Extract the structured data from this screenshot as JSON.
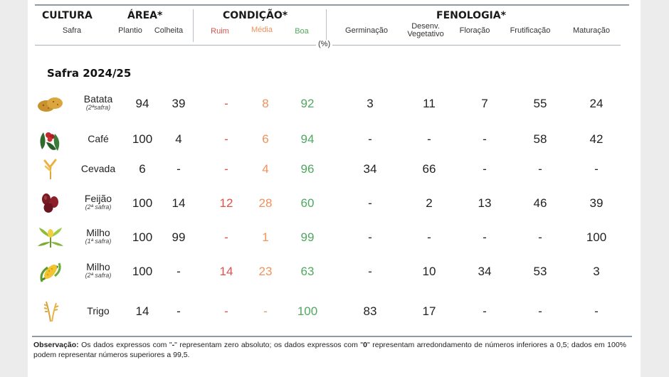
{
  "header": {
    "cultura": "CULTURA",
    "area": "ÁREA*",
    "condicao": "CONDIÇÃO*",
    "fenologia": "FENOLOGIA*",
    "safra": "Safra",
    "plantio": "Plantio",
    "colheita": "Colheita",
    "ruim": "Ruim",
    "media": "Média",
    "boa": "Boa",
    "germinacao": "Germinação",
    "desenv_l1": "Desenv.",
    "desenv_l2": "Vegetativo",
    "floracao": "Floração",
    "frutificacao": "Frutificação",
    "maturacao": "Maturação",
    "unit": "(%)"
  },
  "section_title": "Safra 2024/25",
  "rows": [
    {
      "name": "Batata",
      "note": "(2ªsafra)",
      "icon": "potato-icon",
      "plantio": "94",
      "colheita": "39",
      "ruim": "-",
      "media": "8",
      "boa": "92",
      "germinacao": "3",
      "desenv": "11",
      "floracao": "7",
      "frutificacao": "55",
      "maturacao": "24"
    },
    {
      "name": "Café",
      "note": "",
      "icon": "coffee-icon",
      "plantio": "100",
      "colheita": "4",
      "ruim": "-",
      "media": "6",
      "boa": "94",
      "germinacao": "-",
      "desenv": "-",
      "floracao": "-",
      "frutificacao": "58",
      "maturacao": "42"
    },
    {
      "name": "Cevada",
      "note": "",
      "icon": "barley-icon",
      "plantio": "6",
      "colheita": "-",
      "ruim": "-",
      "media": "4",
      "boa": "96",
      "germinacao": "34",
      "desenv": "66",
      "floracao": "-",
      "frutificacao": "-",
      "maturacao": "-"
    },
    {
      "name": "Feijão",
      "note": "(2ª safra)",
      "icon": "bean-icon",
      "plantio": "100",
      "colheita": "14",
      "ruim": "12",
      "media": "28",
      "boa": "60",
      "germinacao": "-",
      "desenv": "2",
      "floracao": "13",
      "frutificacao": "46",
      "maturacao": "39"
    },
    {
      "name": "Milho",
      "note": "(1ª safra)",
      "icon": "corn-plant-icon",
      "plantio": "100",
      "colheita": "99",
      "ruim": "-",
      "media": "1",
      "boa": "99",
      "germinacao": "-",
      "desenv": "-",
      "floracao": "-",
      "frutificacao": "-",
      "maturacao": "100"
    },
    {
      "name": "Milho",
      "note": "(2ª safra)",
      "icon": "corn-cob-icon",
      "plantio": "100",
      "colheita": "-",
      "ruim": "14",
      "media": "23",
      "boa": "63",
      "germinacao": "-",
      "desenv": "10",
      "floracao": "34",
      "frutificacao": "53",
      "maturacao": "3"
    },
    {
      "name": "Trigo",
      "note": "",
      "icon": "wheat-icon",
      "plantio": "14",
      "colheita": "-",
      "ruim": "-",
      "media": "-",
      "boa": "100",
      "germinacao": "83",
      "desenv": "17",
      "floracao": "-",
      "frutificacao": "-",
      "maturacao": "-"
    }
  ],
  "observation": {
    "label": "Observação:",
    "t1": " Os dados expressos com \"",
    "b1": "-",
    "t2": "\" representam zero absoluto; os dados expressos com \"",
    "b2": "0",
    "t3": "\" representam arredondamento de números inferiores a 0,5; dados em 100% podem representar números superiores a 99,5."
  },
  "colors": {
    "ruim": "#e0504b",
    "media": "#f0925a",
    "boa": "#4fa85f",
    "rule": "#8e9aa5"
  }
}
